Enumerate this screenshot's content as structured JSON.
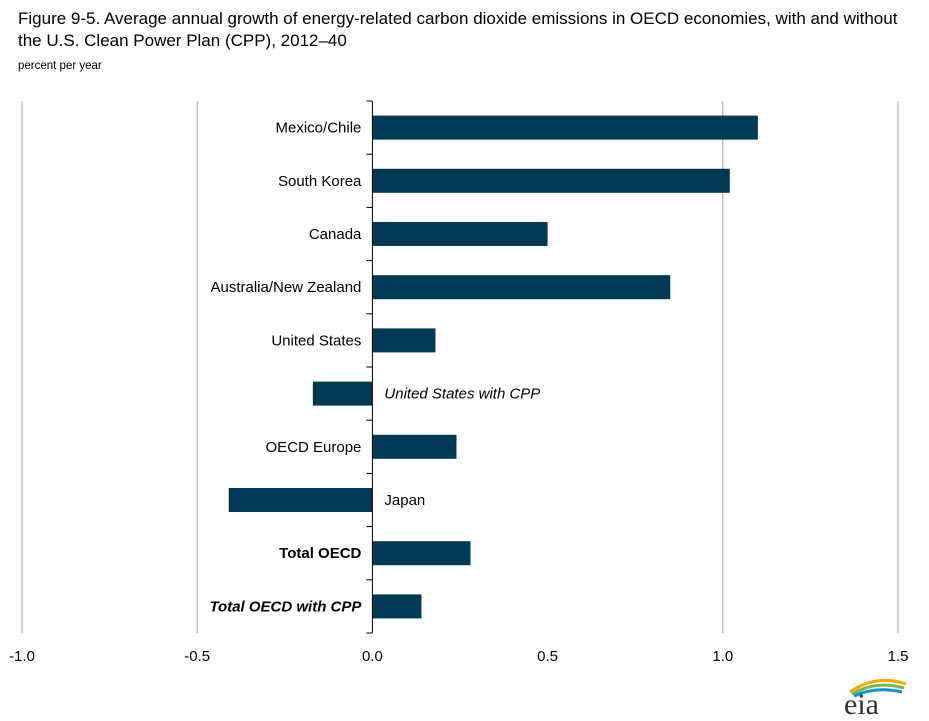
{
  "chart_data": {
    "type": "bar",
    "orientation": "horizontal",
    "title": "Figure 9-5. Average annual growth of energy-related carbon dioxide emissions in OECD economies, with and without the U.S. Clean Power Plan (CPP), 2012–40",
    "subtitle": "percent per year",
    "categories": [
      "Mexico/Chile",
      "South Korea",
      "Canada",
      "Australia/New Zealand",
      "United States",
      "United States with CPP",
      "OECD Europe",
      "Japan",
      "Total OECD",
      "Total OECD with CPP"
    ],
    "label_styles": [
      "normal",
      "normal",
      "normal",
      "normal",
      "normal",
      "italic",
      "normal",
      "normal",
      "bold",
      "bold-italic"
    ],
    "values": [
      1.1,
      1.02,
      0.5,
      0.85,
      0.18,
      -0.17,
      0.24,
      -0.41,
      0.28,
      0.14
    ],
    "xlim": [
      -1.0,
      1.5
    ],
    "xticks": [
      "-1.0",
      "-0.5",
      "0.0",
      "0.5",
      "1.0",
      "1.5"
    ],
    "grid": true,
    "bar_color": "#003953",
    "grid_color": "#a6a6a6"
  },
  "logo": {
    "text": "eia"
  }
}
